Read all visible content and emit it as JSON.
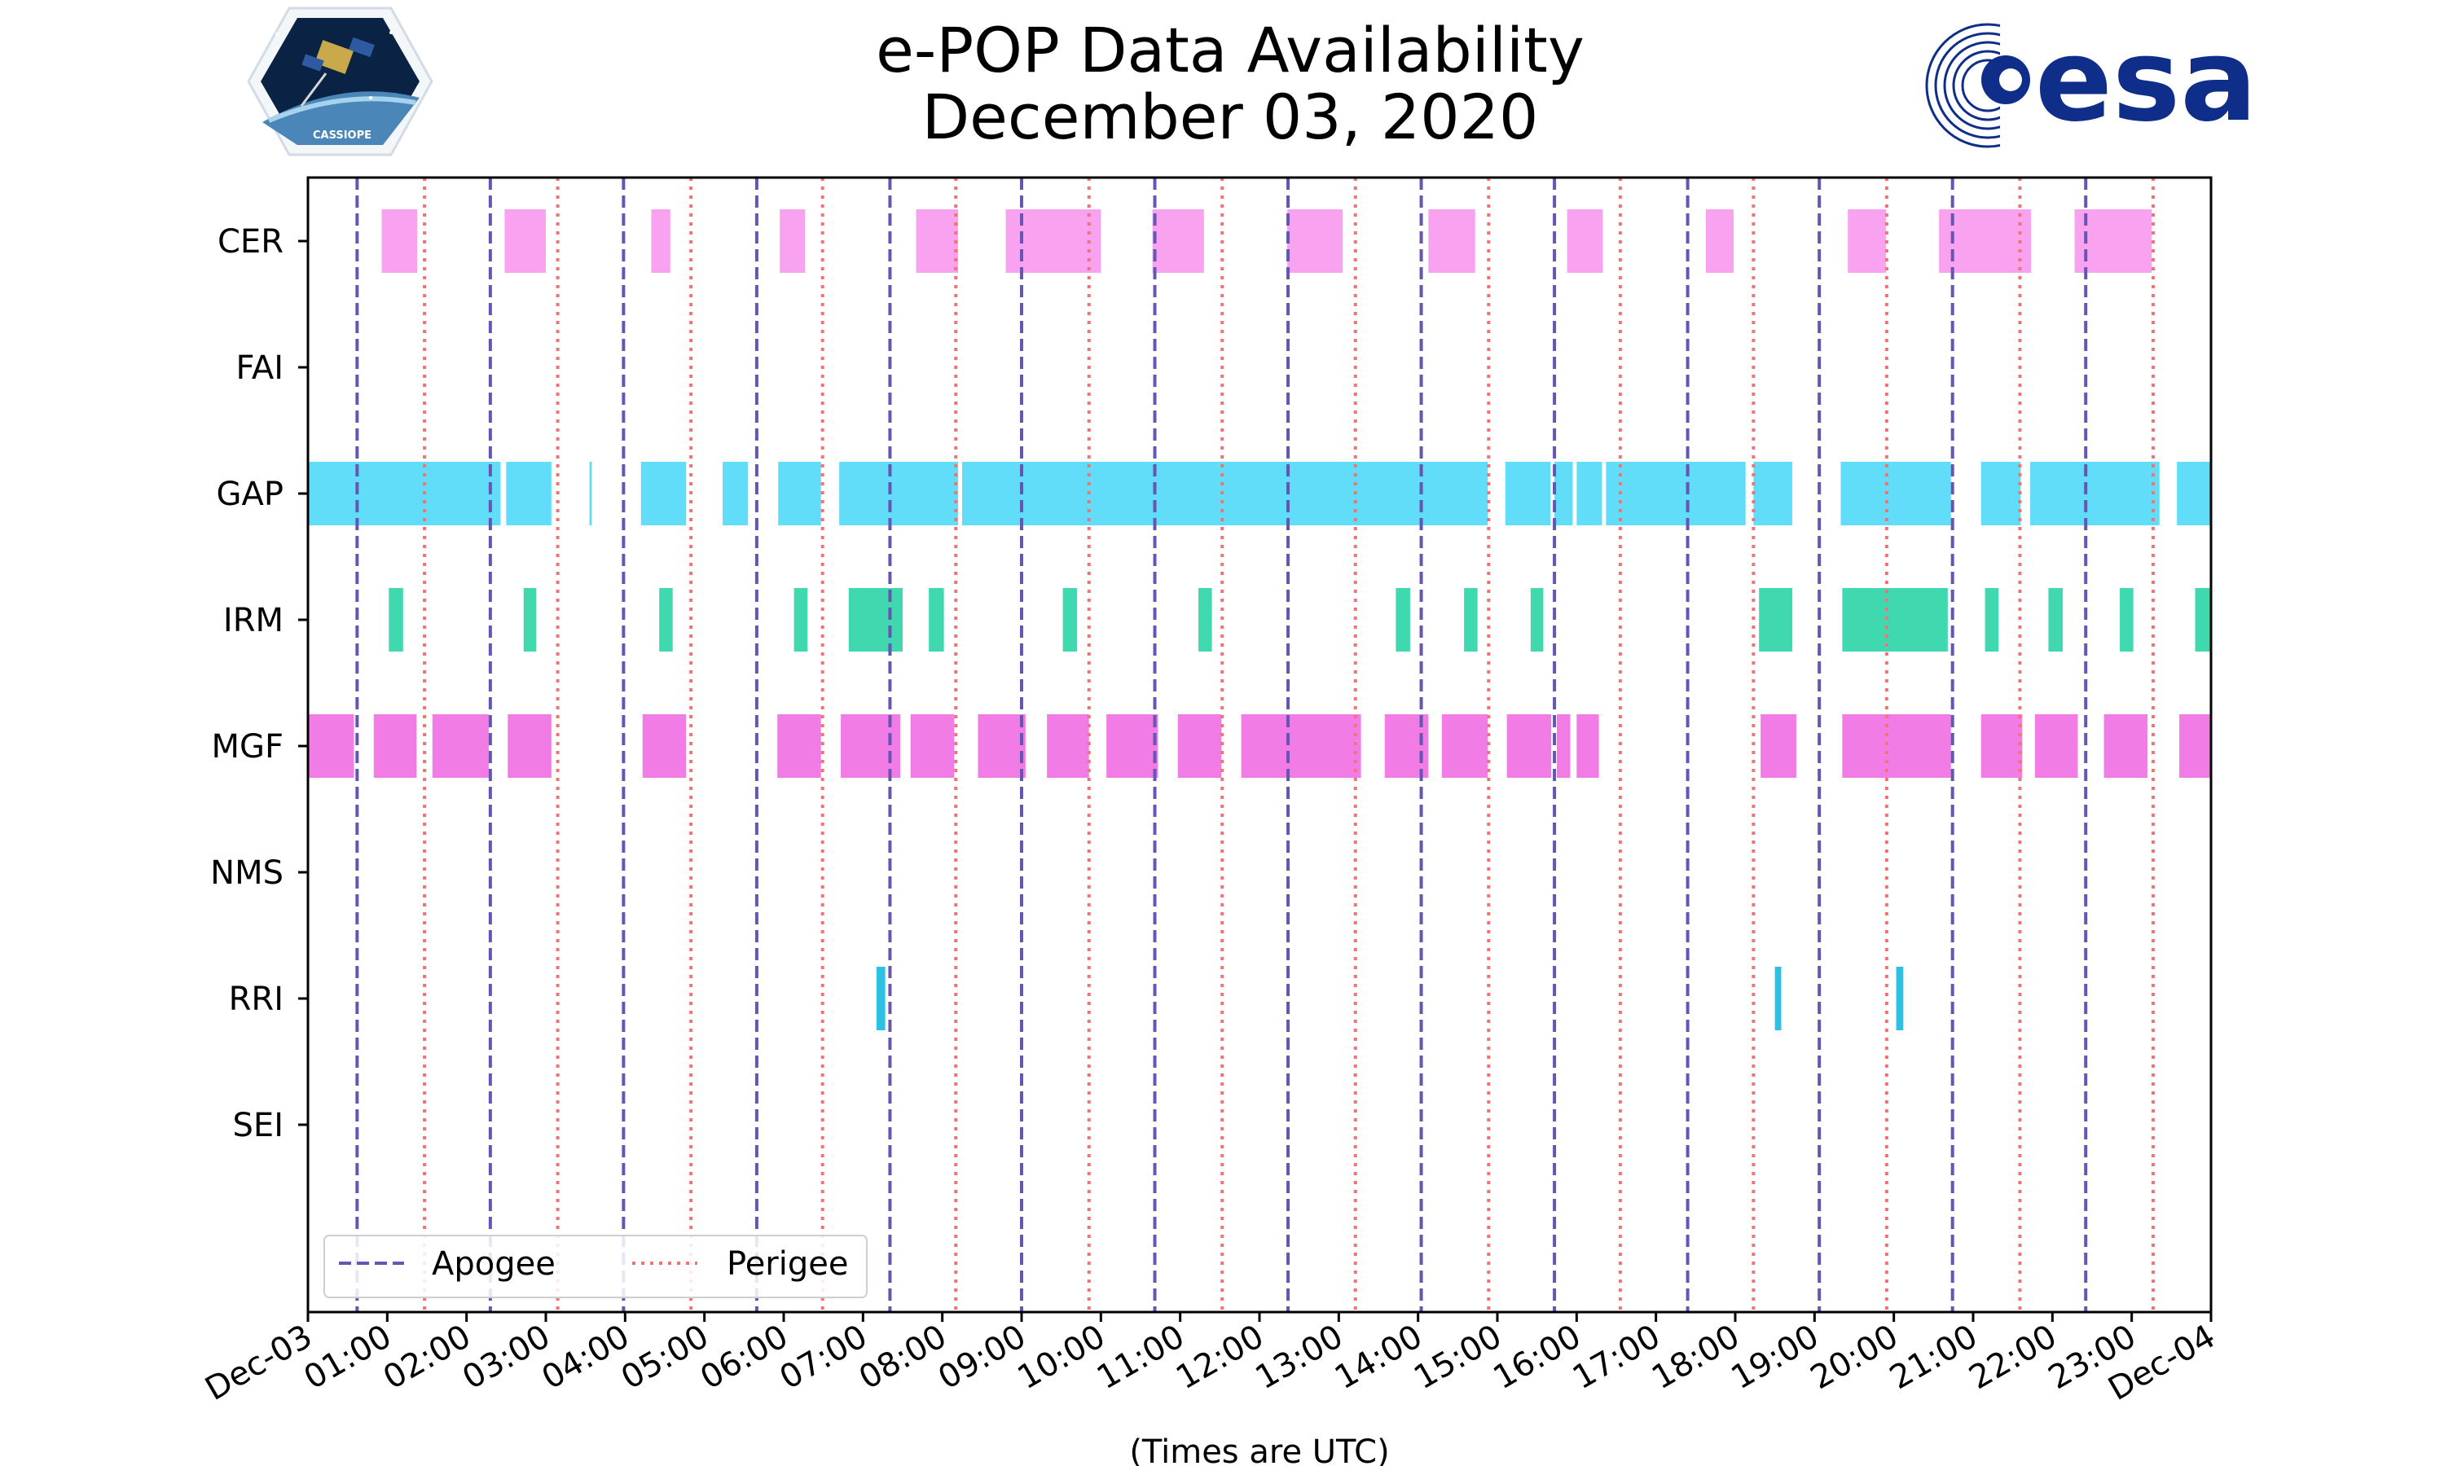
{
  "chart_data": {
    "type": "timeline",
    "title": "e-POP Data Availability",
    "subtitle": "December 03, 2020",
    "xlabel": "(Times are UTC)",
    "x_range_hours": [
      0,
      24
    ],
    "x_tick_labels": [
      "Dec-03",
      "01:00",
      "02:00",
      "03:00",
      "04:00",
      "05:00",
      "06:00",
      "07:00",
      "08:00",
      "09:00",
      "10:00",
      "11:00",
      "12:00",
      "13:00",
      "14:00",
      "15:00",
      "16:00",
      "17:00",
      "18:00",
      "19:00",
      "20:00",
      "21:00",
      "22:00",
      "23:00",
      "Dec-04"
    ],
    "instruments": [
      {
        "name": "CER",
        "color": "#f9a3f0",
        "intervals": [
          [
            0.93,
            1.38
          ],
          [
            2.48,
            3.0
          ],
          [
            4.33,
            4.57
          ],
          [
            5.95,
            6.27
          ],
          [
            7.67,
            8.2
          ],
          [
            8.8,
            10.0
          ],
          [
            10.65,
            11.3
          ],
          [
            12.35,
            13.05
          ],
          [
            14.13,
            14.72
          ],
          [
            15.88,
            16.33
          ],
          [
            17.63,
            17.98
          ],
          [
            19.42,
            19.9
          ],
          [
            20.57,
            21.73
          ],
          [
            22.28,
            23.25
          ]
        ]
      },
      {
        "name": "FAI",
        "color": "#9ccf00",
        "intervals": []
      },
      {
        "name": "GAP",
        "color": "#61dcf9",
        "intervals": [
          [
            0.0,
            2.43
          ],
          [
            2.5,
            3.07
          ],
          [
            3.55,
            3.58
          ],
          [
            4.2,
            4.77
          ],
          [
            5.23,
            5.55
          ],
          [
            5.93,
            6.47
          ],
          [
            6.7,
            8.2
          ],
          [
            8.25,
            14.88
          ],
          [
            15.1,
            15.67
          ],
          [
            15.72,
            15.95
          ],
          [
            16.0,
            16.32
          ],
          [
            16.37,
            18.13
          ],
          [
            18.23,
            18.72
          ],
          [
            19.33,
            20.72
          ],
          [
            21.1,
            21.6
          ],
          [
            21.72,
            23.35
          ],
          [
            23.57,
            24.0
          ]
        ]
      },
      {
        "name": "IRM",
        "color": "#3fd8af",
        "intervals": [
          [
            1.02,
            1.2
          ],
          [
            2.72,
            2.88
          ],
          [
            4.43,
            4.6
          ],
          [
            6.13,
            6.3
          ],
          [
            6.82,
            7.5
          ],
          [
            7.83,
            8.02
          ],
          [
            9.52,
            9.7
          ],
          [
            11.23,
            11.4
          ],
          [
            13.72,
            13.9
          ],
          [
            14.58,
            14.75
          ],
          [
            15.42,
            15.58
          ],
          [
            18.3,
            18.72
          ],
          [
            19.35,
            20.68
          ],
          [
            21.15,
            21.32
          ],
          [
            21.95,
            22.13
          ],
          [
            22.85,
            23.02
          ],
          [
            23.8,
            24.0
          ]
        ]
      },
      {
        "name": "MGF",
        "color": "#f17ce6",
        "intervals": [
          [
            0.0,
            0.58
          ],
          [
            0.83,
            1.37
          ],
          [
            1.57,
            2.28
          ],
          [
            2.52,
            3.07
          ],
          [
            4.22,
            4.77
          ],
          [
            5.92,
            6.47
          ],
          [
            6.72,
            7.47
          ],
          [
            7.6,
            8.15
          ],
          [
            8.45,
            9.05
          ],
          [
            9.32,
            9.85
          ],
          [
            10.07,
            10.72
          ],
          [
            10.97,
            11.52
          ],
          [
            11.77,
            13.28
          ],
          [
            13.58,
            14.13
          ],
          [
            14.3,
            14.88
          ],
          [
            15.12,
            15.68
          ],
          [
            15.75,
            15.92
          ],
          [
            16.0,
            16.28
          ],
          [
            18.32,
            18.77
          ],
          [
            19.35,
            20.72
          ],
          [
            21.1,
            21.62
          ],
          [
            21.78,
            22.32
          ],
          [
            22.65,
            23.2
          ],
          [
            23.6,
            24.0
          ]
        ]
      },
      {
        "name": "NMS",
        "color": "#c68b2b",
        "intervals": []
      },
      {
        "name": "RRI",
        "color": "#2bc0e4",
        "intervals": [
          [
            7.17,
            7.28
          ],
          [
            18.5,
            18.58
          ],
          [
            20.03,
            20.12
          ]
        ]
      },
      {
        "name": "SEI",
        "color": "#8ab800",
        "intervals": []
      }
    ],
    "apogee_hours": [
      0.62,
      2.3,
      3.98,
      5.66,
      7.34,
      9.0,
      10.68,
      12.36,
      14.04,
      15.72,
      17.4,
      19.06,
      20.74,
      22.42
    ],
    "perigee_hours": [
      1.47,
      3.15,
      4.83,
      6.49,
      8.17,
      9.85,
      11.53,
      13.21,
      14.89,
      16.55,
      18.23,
      19.91,
      21.59,
      23.27
    ],
    "legend": {
      "position": "lower-left",
      "entries": [
        {
          "label": "Apogee",
          "color": "#6655b3",
          "style": "dashed"
        },
        {
          "label": "Perigee",
          "color": "#f27373",
          "style": "dotted"
        }
      ]
    }
  },
  "logos": {
    "left_caption": "CASSIOPE",
    "right_text": "esa",
    "right_color": "#0f2e8a"
  }
}
